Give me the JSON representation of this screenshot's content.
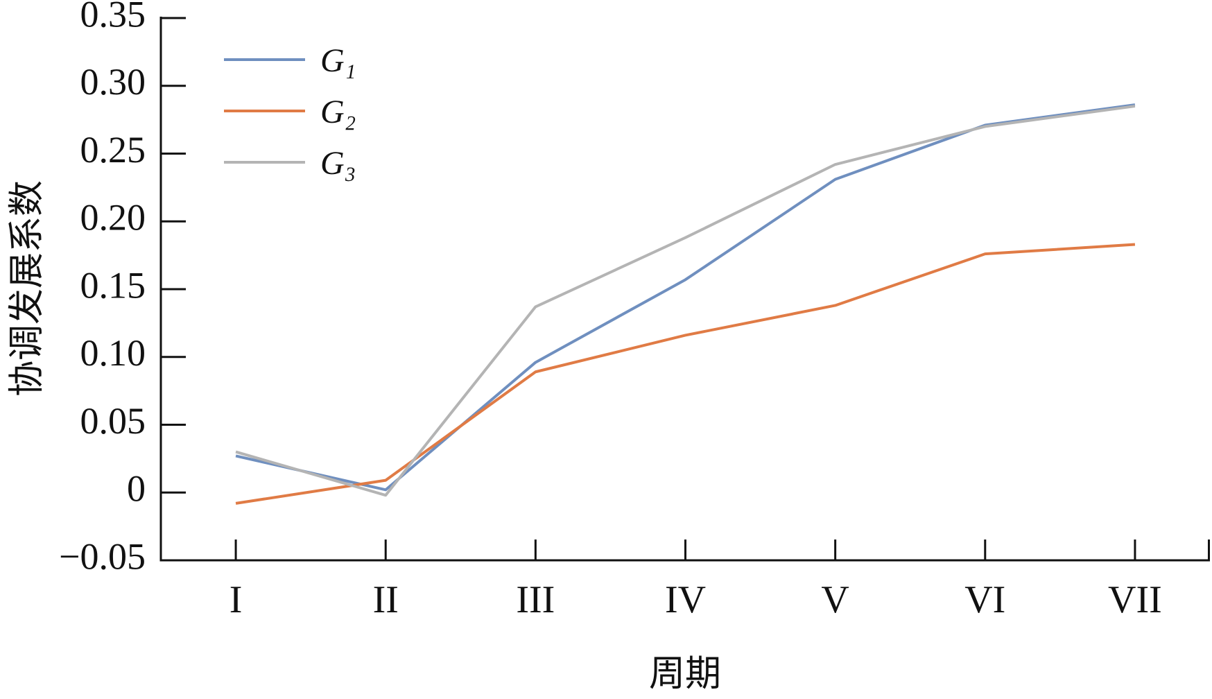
{
  "chart_data": {
    "type": "line",
    "y_label": "协调发展系数",
    "x_label": "周期",
    "categories": [
      "I",
      "II",
      "III",
      "IV",
      "V",
      "VI",
      "VII"
    ],
    "series": [
      {
        "name": "G₁",
        "color": "#6f8fbf",
        "values": [
          0.027,
          0.002,
          0.096,
          0.157,
          0.231,
          0.271,
          0.286
        ]
      },
      {
        "name": "G₂",
        "color": "#e07b45",
        "values": [
          -0.008,
          0.009,
          0.089,
          0.116,
          0.138,
          0.176,
          0.183
        ]
      },
      {
        "name": "G₃",
        "color": "#b4b4b4",
        "values": [
          0.03,
          -0.002,
          0.137,
          0.188,
          0.242,
          0.27,
          0.285
        ]
      }
    ],
    "ylim": [
      -0.05,
      0.35
    ],
    "yticks": [
      {
        "value": -0.05,
        "label": "−0.05"
      },
      0,
      0.05,
      {
        "value": 0.1,
        "label": "0.10"
      },
      0.15,
      {
        "value": 0.2,
        "label": "0.20"
      },
      0.25,
      {
        "value": 0.3,
        "label": "0.30"
      },
      0.35
    ],
    "legend": "upper-left"
  }
}
